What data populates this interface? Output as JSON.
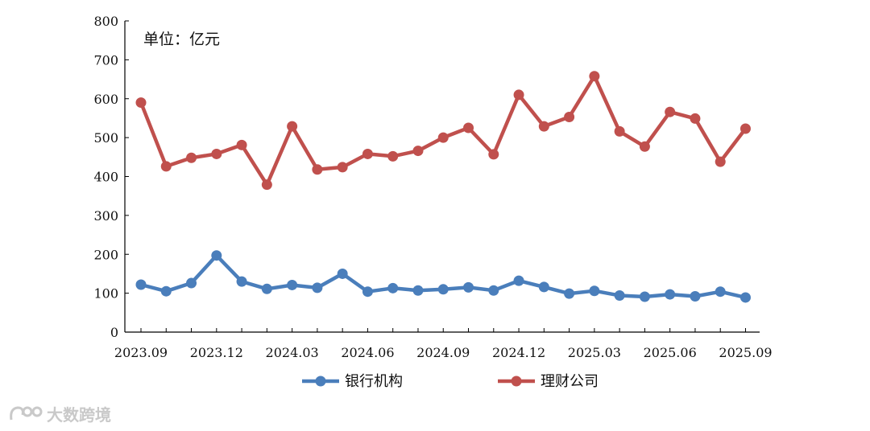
{
  "chart_data": {
    "type": "line",
    "unit_label": "单位：亿元",
    "x": [
      "2023.09",
      "2023.10",
      "2023.11",
      "2023.12",
      "2024.01",
      "2024.02",
      "2024.03",
      "2024.04",
      "2024.05",
      "2024.06",
      "2024.07",
      "2024.08",
      "2024.09",
      "2024.10",
      "2024.11",
      "2024.12",
      "2025.01",
      "2025.02",
      "2025.03",
      "2025.04",
      "2025.05",
      "2025.06",
      "2025.07",
      "2025.08",
      "2025.09"
    ],
    "x_tick_labels": [
      "2023.09",
      "2023.12",
      "2024.03",
      "2024.06",
      "2024.09",
      "2024.12",
      "2025.03",
      "2025.06",
      "2025.09"
    ],
    "y_ticks": [
      "0",
      "100",
      "200",
      "300",
      "400",
      "500",
      "600",
      "700",
      "800"
    ],
    "ylim": [
      0,
      800
    ],
    "grid": false,
    "legend_position": "bottom",
    "series": [
      {
        "name": "银行机构",
        "color": "#4a7ebb",
        "values": [
          122,
          105,
          126,
          197,
          130,
          111,
          121,
          114,
          150,
          104,
          113,
          107,
          110,
          115,
          107,
          132,
          116,
          99,
          106,
          94,
          91,
          97,
          92,
          104,
          89
        ]
      },
      {
        "name": "理财公司",
        "color": "#c0504d",
        "values": [
          590,
          426,
          448,
          458,
          481,
          379,
          529,
          418,
          424,
          458,
          452,
          466,
          500,
          525,
          457,
          610,
          529,
          553,
          658,
          516,
          477,
          566,
          549,
          438,
          523
        ]
      }
    ]
  },
  "watermark": {
    "text": "大数跨境",
    "icon": "logo-icon"
  }
}
